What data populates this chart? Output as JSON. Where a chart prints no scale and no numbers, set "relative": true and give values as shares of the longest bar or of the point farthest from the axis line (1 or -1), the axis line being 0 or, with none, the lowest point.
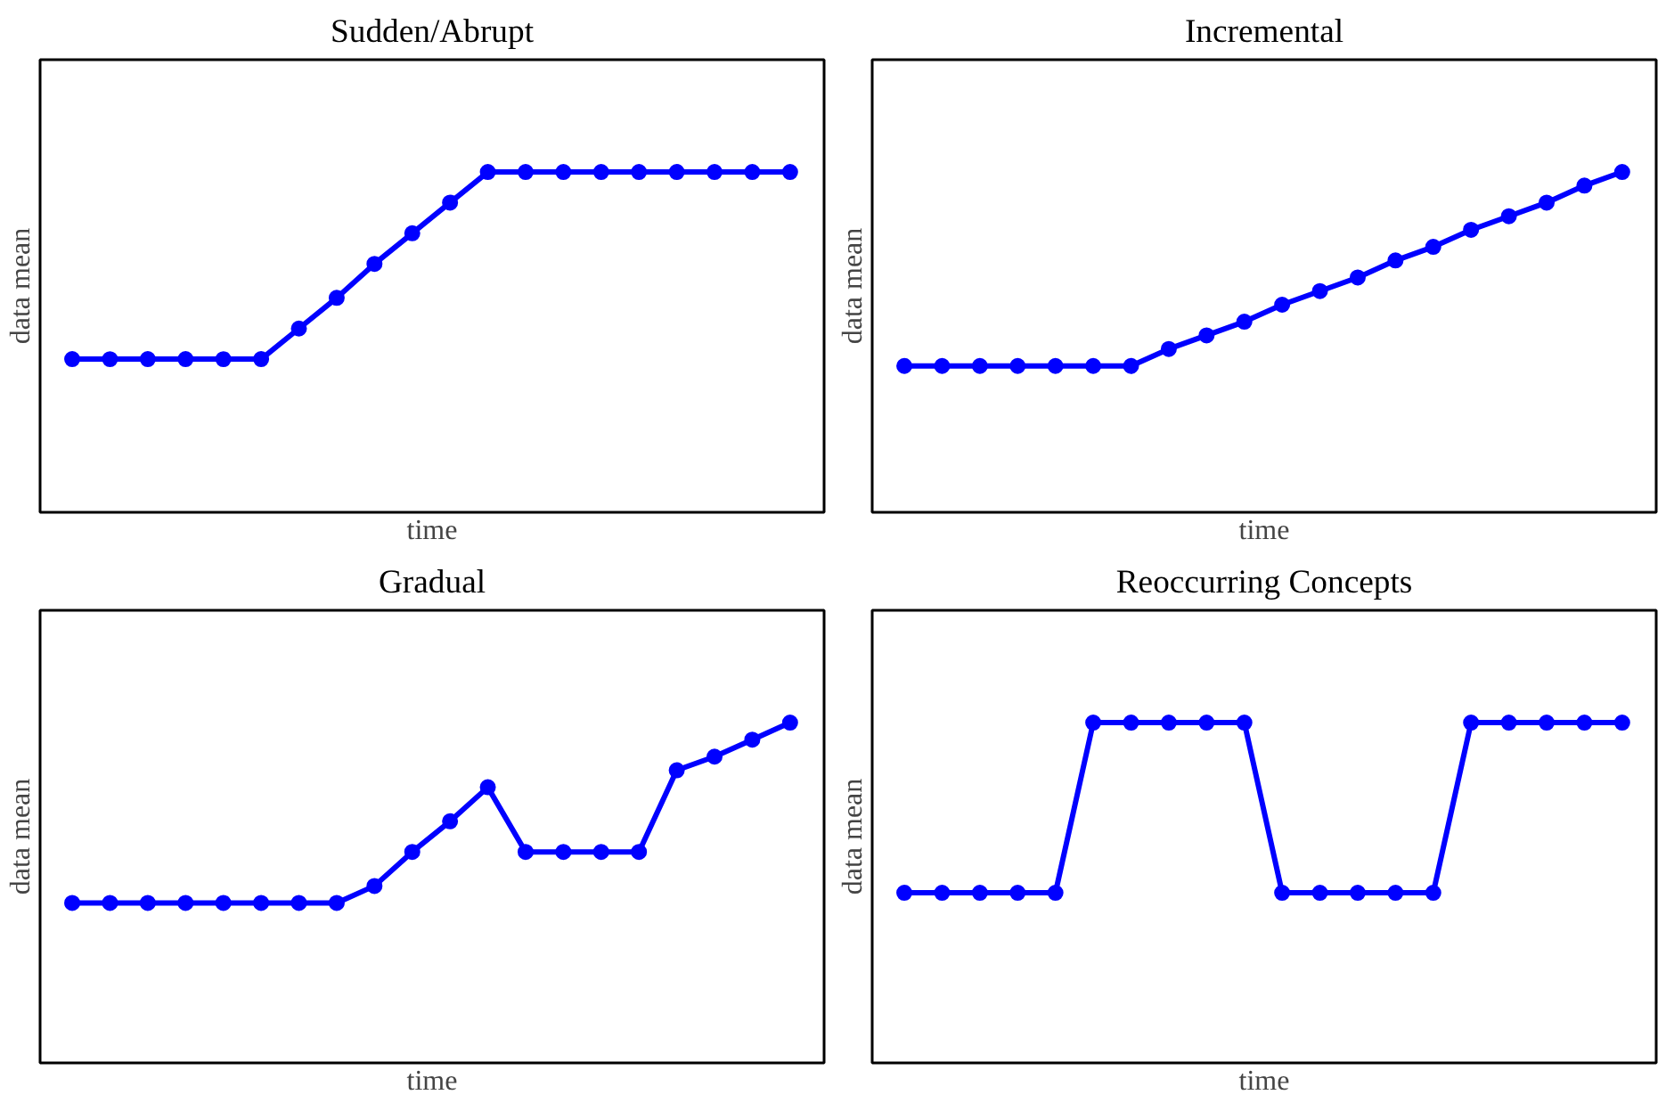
{
  "chart_data": [
    {
      "type": "line",
      "title": "Sudden/Abrupt",
      "xlabel": "time",
      "ylabel": "data mean",
      "relative": true,
      "marker": "circle",
      "line_style": "solid",
      "categories": [
        null,
        null,
        null,
        null,
        null,
        null,
        null,
        null,
        null,
        null,
        null,
        null,
        null,
        null,
        null,
        null,
        null,
        null,
        null,
        null
      ],
      "series": [
        {
          "color": "#0000ff",
          "values": [
            0.45,
            0.45,
            0.45,
            0.45,
            0.45,
            0.45,
            0.54,
            0.63,
            0.73,
            0.82,
            0.91,
            1,
            1,
            1,
            1,
            1,
            1,
            1,
            1,
            1
          ]
        }
      ]
    },
    {
      "type": "line",
      "title": "Incremental",
      "xlabel": "time",
      "ylabel": "data mean",
      "relative": true,
      "marker": "circle",
      "line_style": "solid",
      "categories": [
        null,
        null,
        null,
        null,
        null,
        null,
        null,
        null,
        null,
        null,
        null,
        null,
        null,
        null,
        null,
        null,
        null,
        null,
        null,
        null
      ],
      "series": [
        {
          "color": "#0000ff",
          "values": [
            0.43,
            0.43,
            0.43,
            0.43,
            0.43,
            0.43,
            0.43,
            0.48,
            0.52,
            0.56,
            0.61,
            0.65,
            0.69,
            0.74,
            0.78,
            0.83,
            0.87,
            0.91,
            0.96,
            1
          ]
        }
      ]
    },
    {
      "type": "line",
      "title": "Gradual",
      "xlabel": "time",
      "ylabel": "data mean",
      "relative": true,
      "marker": "circle",
      "line_style": "solid",
      "categories": [
        null,
        null,
        null,
        null,
        null,
        null,
        null,
        null,
        null,
        null,
        null,
        null,
        null,
        null,
        null,
        null,
        null,
        null,
        null,
        null
      ],
      "series": [
        {
          "color": "#0000ff",
          "values": [
            0.47,
            0.47,
            0.47,
            0.47,
            0.47,
            0.47,
            0.47,
            0.47,
            0.52,
            0.62,
            0.71,
            0.81,
            0.62,
            0.62,
            0.62,
            0.62,
            0.86,
            0.9,
            0.95,
            1
          ]
        }
      ]
    },
    {
      "type": "line",
      "title": "Reoccurring Concepts",
      "xlabel": "time",
      "ylabel": "data mean",
      "relative": true,
      "marker": "circle",
      "line_style": "solid",
      "categories": [
        null,
        null,
        null,
        null,
        null,
        null,
        null,
        null,
        null,
        null,
        null,
        null,
        null,
        null,
        null,
        null,
        null,
        null,
        null,
        null
      ],
      "series": [
        {
          "color": "#0000ff",
          "values": [
            0.5,
            0.5,
            0.5,
            0.5,
            0.5,
            1,
            1,
            1,
            1,
            1,
            0.5,
            0.5,
            0.5,
            0.5,
            0.5,
            1,
            1,
            1,
            1,
            1
          ]
        }
      ]
    }
  ]
}
